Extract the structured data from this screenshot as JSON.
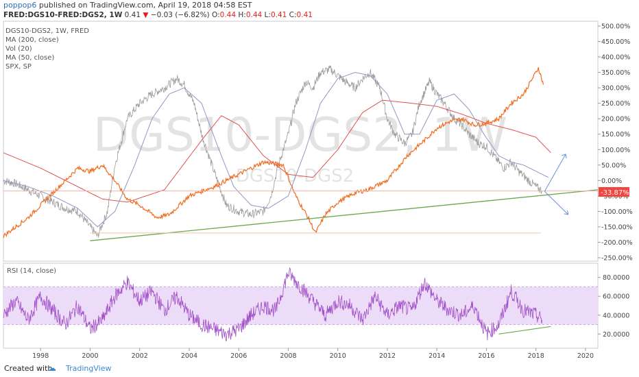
{
  "header": {
    "author": "poppop6",
    "published_text": "published on TradingView.com, April 19, 2018 04:58 EST",
    "symbol": "FRED:DGS10-FRED:DGS2, 1W",
    "last": "0.41",
    "change": "−0.03 (−6.82%)",
    "o_label": "O:",
    "o_value": "0.44",
    "h_label": "H:",
    "h_value": "0.44",
    "l_label": "L:",
    "l_value": "0.41",
    "c_label": "C:",
    "c_value": "0.41"
  },
  "main_pane": {
    "indicators": [
      "DGS10-DGS2, 1W, FRED",
      "MA (200, close)",
      "Vol (20)",
      "MA (50, close)",
      "SPX, SP"
    ],
    "watermark_large": "DGS10-DGS2, 1W",
    "watermark_small": "DGS10-DGS2",
    "current_value_badge": "-33.87%"
  },
  "rsi_pane": {
    "label": "RSI (14, close)"
  },
  "footer": {
    "created_with": "Created with",
    "brand": "TradingView"
  },
  "colors": {
    "spread": "#9a9a9a",
    "ma200": "#e05050",
    "ma50": "#8c98c8",
    "spx": "#f26b1d",
    "trend": "#6aa84f",
    "rsi": "#a04fc8",
    "rsi_band": "#eddcf7",
    "badge": "#f2453d",
    "projection": "#6a8fd8"
  },
  "chart_data": [
    {
      "type": "line",
      "title": "DGS10-DGS2, 1W, FRED",
      "x_range": [
        1996.5,
        2020.5
      ],
      "x_ticks": [
        1998,
        2000,
        2002,
        2004,
        2006,
        2008,
        2010,
        2012,
        2014,
        2016,
        2018,
        2020
      ],
      "ylim": [
        -250,
        500
      ],
      "y_ticks": [
        500,
        450,
        400,
        350,
        300,
        250,
        200,
        150,
        100,
        50,
        0,
        -50,
        -100,
        -150,
        -200,
        -250
      ],
      "y_unit": "%",
      "series": [
        {
          "name": "DGS10-DGS2, 1W, FRED",
          "x": [
            1996.5,
            1997.0,
            1997.5,
            1998.0,
            1998.5,
            1999.0,
            1999.5,
            2000.0,
            2000.3,
            2000.7,
            2001.0,
            2001.5,
            2002.0,
            2002.5,
            2003.0,
            2003.5,
            2003.8,
            2004.2,
            2004.5,
            2005.0,
            2005.5,
            2006.0,
            2006.5,
            2007.0,
            2007.3,
            2007.6,
            2008.0,
            2008.3,
            2008.7,
            2009.0,
            2009.3,
            2009.7,
            2010.0,
            2010.3,
            2010.7,
            2011.0,
            2011.3,
            2011.7,
            2012.0,
            2012.3,
            2012.7,
            2013.0,
            2013.3,
            2013.7,
            2014.0,
            2014.3,
            2014.7,
            2015.0,
            2015.3,
            2015.7,
            2016.0,
            2016.3,
            2016.7,
            2017.0,
            2017.3,
            2017.7,
            2018.0,
            2018.25
          ],
          "values": [
            0,
            -10,
            -30,
            -50,
            -70,
            -90,
            -100,
            -150,
            -180,
            -100,
            50,
            200,
            250,
            280,
            300,
            330,
            310,
            250,
            150,
            30,
            -80,
            -100,
            -110,
            -100,
            -50,
            50,
            150,
            250,
            320,
            300,
            350,
            360,
            340,
            320,
            300,
            330,
            350,
            300,
            200,
            150,
            120,
            150,
            250,
            320,
            280,
            250,
            200,
            180,
            150,
            120,
            110,
            80,
            40,
            60,
            30,
            0,
            -20,
            -33.87
          ]
        },
        {
          "name": "MA (200, close)",
          "x": [
            1996.5,
            1998.0,
            1999.5,
            2000.5,
            2001.5,
            2003.0,
            2004.5,
            2005.3,
            2006.0,
            2007.0,
            2008.0,
            2009.0,
            2010.0,
            2011.0,
            2011.8,
            2013.0,
            2014.0,
            2015.0,
            2016.0,
            2017.0,
            2018.0,
            2018.6
          ],
          "values": [
            90,
            40,
            -20,
            -60,
            -70,
            -30,
            130,
            210,
            180,
            80,
            20,
            10,
            100,
            220,
            260,
            250,
            240,
            215,
            185,
            165,
            140,
            90
          ]
        },
        {
          "name": "MA (50, close)",
          "x": [
            1996.5,
            1997.5,
            1998.5,
            1999.5,
            2000.3,
            2001.0,
            2001.8,
            2002.5,
            2003.2,
            2003.8,
            2004.5,
            2005.2,
            2005.8,
            2006.5,
            2007.2,
            2008.0,
            2008.7,
            2009.3,
            2010.0,
            2010.7,
            2011.3,
            2012.0,
            2012.7,
            2013.3,
            2014.0,
            2014.7,
            2015.3,
            2015.9,
            2016.5,
            2017.0,
            2017.5,
            2018.0,
            2018.5
          ],
          "values": [
            0,
            -20,
            -50,
            -90,
            -150,
            -100,
            50,
            200,
            280,
            300,
            250,
            100,
            -20,
            -80,
            -90,
            -50,
            100,
            250,
            330,
            350,
            340,
            280,
            150,
            150,
            260,
            280,
            230,
            150,
            80,
            60,
            50,
            30,
            10
          ]
        },
        {
          "name": "SPX, SP",
          "x": [
            1996.5,
            1997.5,
            1998.5,
            1999.5,
            2000.0,
            2000.5,
            2001.0,
            2001.5,
            2002.0,
            2002.7,
            2003.2,
            2004.0,
            2005.0,
            2006.0,
            2007.0,
            2007.8,
            2008.3,
            2008.8,
            2009.1,
            2009.5,
            2010.0,
            2010.7,
            2011.2,
            2012.0,
            2012.8,
            2013.5,
            2014.0,
            2014.5,
            2015.0,
            2015.5,
            2016.0,
            2016.5,
            2017.0,
            2017.5,
            2018.0,
            2018.1,
            2018.3
          ],
          "values": [
            -180,
            -120,
            -40,
            40,
            30,
            50,
            0,
            -60,
            -80,
            -120,
            -110,
            -50,
            -20,
            20,
            60,
            50,
            -50,
            -120,
            -170,
            -110,
            -70,
            -40,
            -30,
            0,
            80,
            130,
            170,
            190,
            200,
            180,
            185,
            200,
            250,
            280,
            350,
            365,
            310
          ]
        },
        {
          "name": "Trendline",
          "x": [
            2000.0,
            2020.5
          ],
          "values": [
            -195,
            -30
          ]
        },
        {
          "name": "Horizontal level",
          "x": [
            1996.5,
            2020.5
          ],
          "values": [
            -33.87,
            -33.87
          ]
        },
        {
          "name": "Horizontal level",
          "x": [
            2000.0,
            2018.2
          ],
          "values": [
            -170,
            -170
          ]
        }
      ]
    },
    {
      "type": "line",
      "title": "RSI (14, close)",
      "x_range": [
        1996.5,
        2020.5
      ],
      "ylim": [
        5,
        95
      ],
      "y_ticks": [
        80,
        60,
        40,
        20
      ],
      "band": [
        30,
        70
      ],
      "series": [
        {
          "name": "RSI (14, close)",
          "x": [
            1996.5,
            1997.0,
            1997.5,
            1998.0,
            1998.5,
            1999.0,
            1999.5,
            2000.0,
            2000.5,
            2001.0,
            2001.5,
            2002.0,
            2002.5,
            2003.0,
            2003.5,
            2004.0,
            2004.5,
            2005.0,
            2005.5,
            2006.0,
            2006.5,
            2007.0,
            2007.5,
            2008.0,
            2008.5,
            2009.0,
            2009.5,
            2010.0,
            2010.5,
            2011.0,
            2011.5,
            2012.0,
            2012.5,
            2013.0,
            2013.5,
            2014.0,
            2014.5,
            2015.0,
            2015.5,
            2016.0,
            2016.5,
            2017.0,
            2017.5,
            2018.0,
            2018.25
          ],
          "values": [
            40,
            55,
            35,
            60,
            45,
            30,
            50,
            25,
            35,
            60,
            75,
            55,
            65,
            45,
            60,
            40,
            30,
            25,
            20,
            25,
            40,
            50,
            45,
            85,
            70,
            55,
            40,
            55,
            50,
            35,
            60,
            40,
            50,
            45,
            75,
            55,
            45,
            40,
            50,
            20,
            30,
            65,
            45,
            40,
            35
          ]
        },
        {
          "name": "Trendline",
          "x": [
            2016.5,
            2018.6
          ],
          "values": [
            20,
            28
          ]
        }
      ]
    }
  ]
}
